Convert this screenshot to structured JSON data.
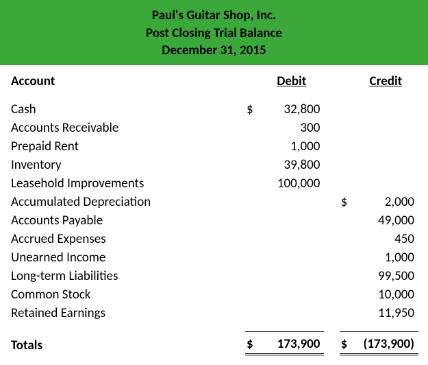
{
  "header": {
    "company": "Paul's Guitar Shop, Inc.",
    "report": "Post Closing Trial Balance",
    "date": "December 31, 2015",
    "bg_color": "#3aa93a"
  },
  "columns": {
    "account": "Account",
    "debit": "Debit",
    "credit": "Credit"
  },
  "currency_symbol": "$",
  "rows": [
    {
      "account": "Cash",
      "debit": "32,800",
      "credit": "",
      "show_debit_sym": true
    },
    {
      "account": "Accounts Receivable",
      "debit": "300",
      "credit": ""
    },
    {
      "account": "Prepaid Rent",
      "debit": "1,000",
      "credit": ""
    },
    {
      "account": "Inventory",
      "debit": "39,800",
      "credit": ""
    },
    {
      "account": "Leasehold Improvements",
      "debit": "100,000",
      "credit": ""
    },
    {
      "account": "Accumulated Depreciation",
      "debit": "",
      "credit": "2,000",
      "show_credit_sym": true
    },
    {
      "account": "Accounts Payable",
      "debit": "",
      "credit": "49,000"
    },
    {
      "account": "Accrued Expenses",
      "debit": "",
      "credit": "450"
    },
    {
      "account": "Unearned Income",
      "debit": "",
      "credit": "1,000"
    },
    {
      "account": "Long-term Liabilities",
      "debit": "",
      "credit": "99,500"
    },
    {
      "account": "Common Stock",
      "debit": "",
      "credit": "10,000"
    },
    {
      "account": "Retained Earnings",
      "debit": "",
      "credit": "11,950"
    }
  ],
  "totals": {
    "label": "Totals",
    "debit": "173,900",
    "credit": "(173,900)"
  },
  "style": {
    "font_family": "Calibri, Arial, sans-serif",
    "header_fontsize": 19,
    "body_fontsize": 19,
    "text_color": "#000000",
    "background_color": "#ffffff",
    "border_color": "#000000"
  }
}
